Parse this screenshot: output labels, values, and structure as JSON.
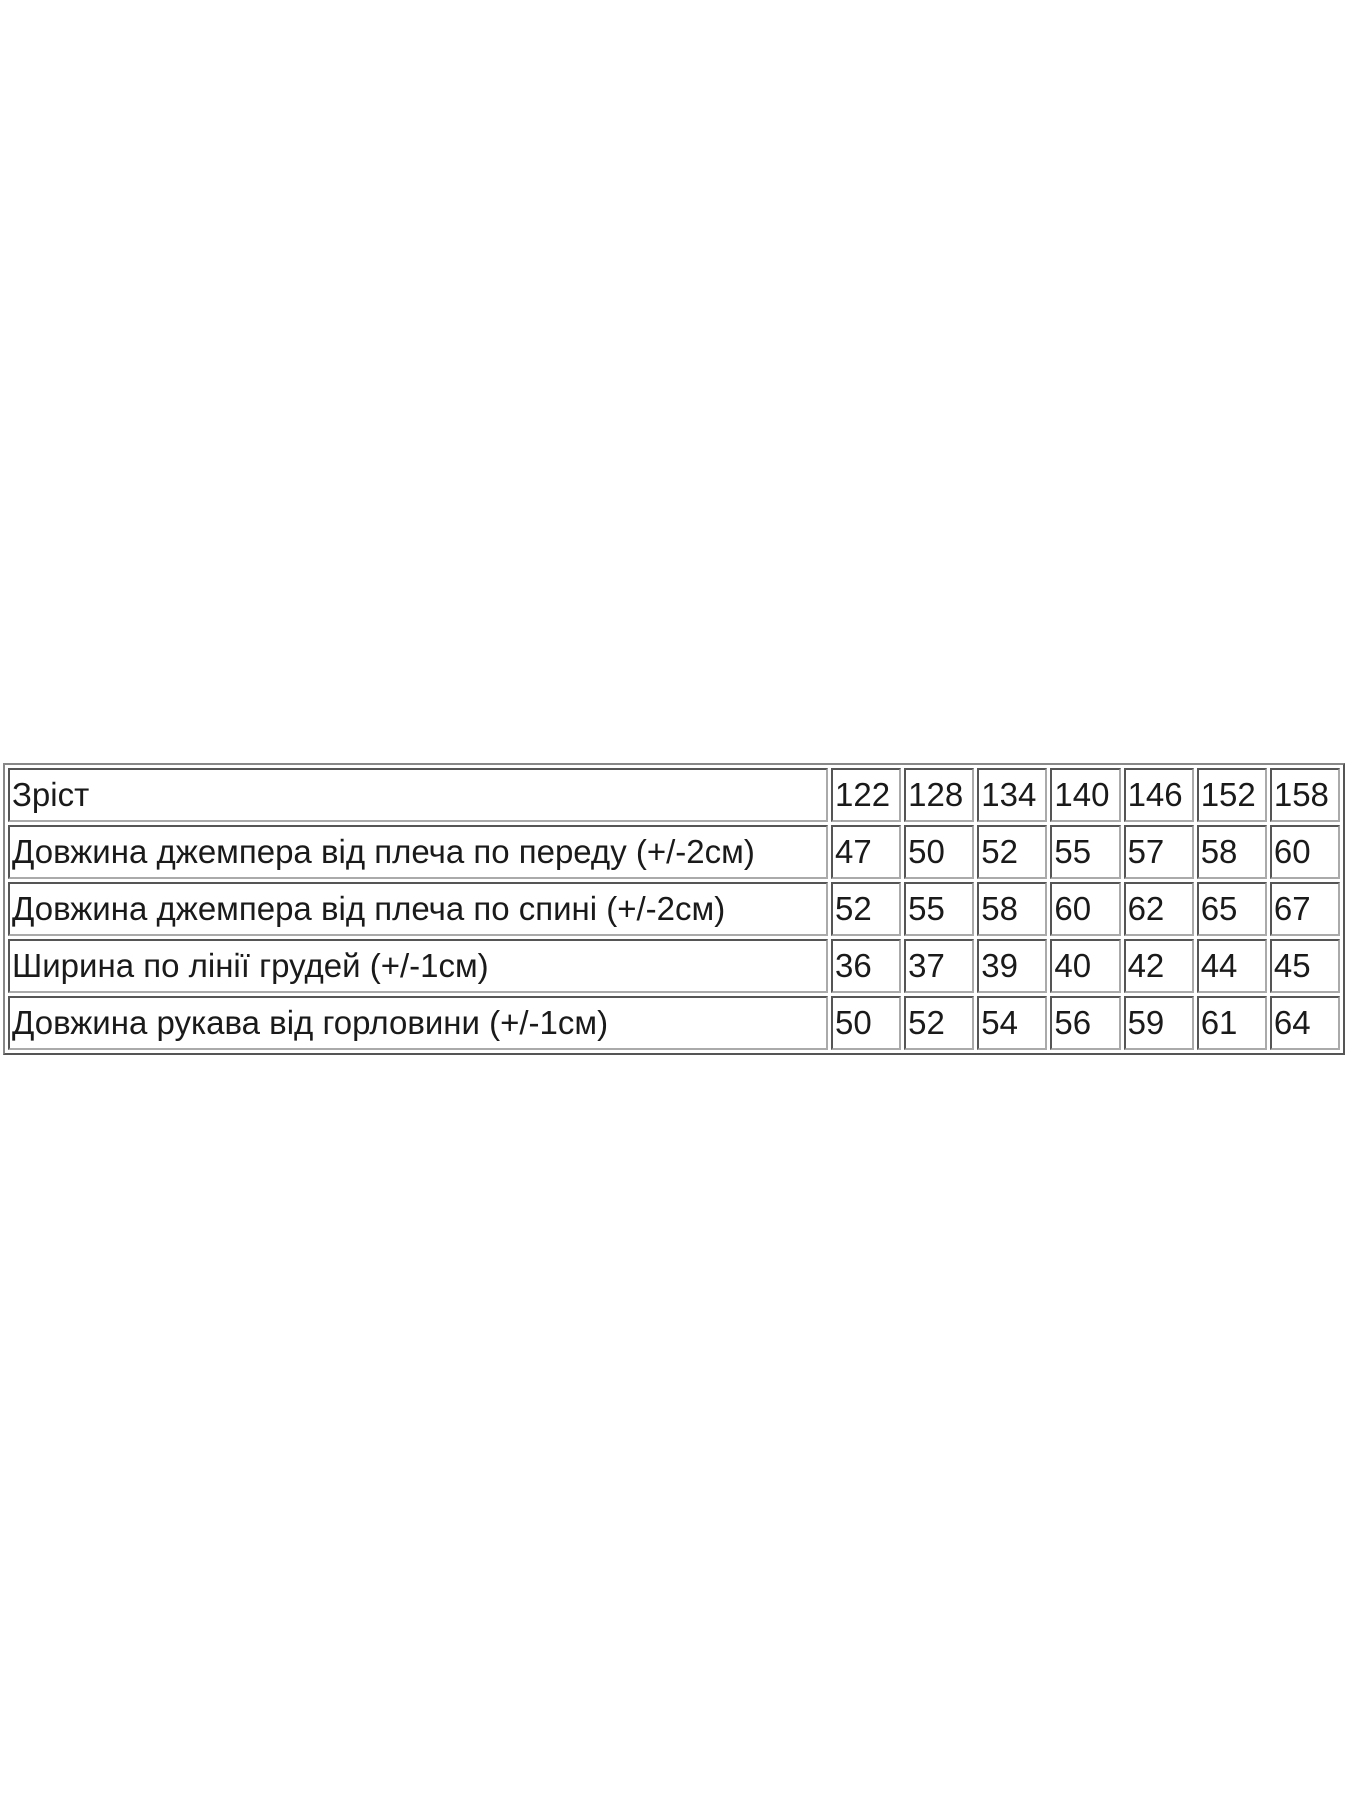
{
  "table": {
    "header": {
      "label": "Зріст",
      "sizes": [
        "122",
        "128",
        "134",
        "140",
        "146",
        "152",
        "158"
      ]
    },
    "rows": [
      {
        "label": "Довжина джемпера від плеча по переду (+/-2см)",
        "values": [
          "47",
          "50",
          "52",
          "55",
          "57",
          "58",
          "60"
        ]
      },
      {
        "label": "Довжина джемпера від плеча по спині  (+/-2см)",
        "values": [
          "52",
          "55",
          "58",
          "60",
          "62",
          "65",
          "67"
        ]
      },
      {
        "label": "Ширина по лінії грудей (+/-1см)",
        "values": [
          "36",
          "37",
          "39",
          "40",
          "42",
          "44",
          "45"
        ]
      },
      {
        "label": "Довжина рукава від горловини (+/-1см)",
        "values": [
          "50",
          "52",
          "54",
          "56",
          "59",
          "61",
          "64"
        ]
      }
    ]
  }
}
